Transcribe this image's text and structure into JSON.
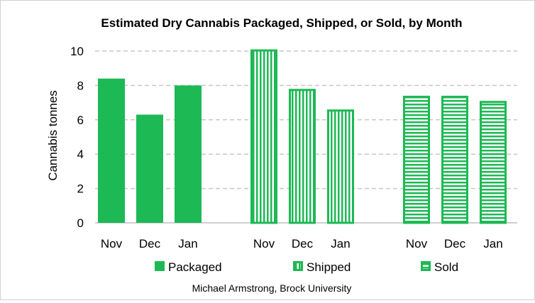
{
  "chart_data": {
    "type": "bar",
    "title": "Estimated Dry Cannabis Packaged, Shipped, or Sold, by Month",
    "ylabel": "Cannabis tonnes",
    "xlabel": "",
    "ylim": [
      0,
      10
    ],
    "yticks": [
      "0",
      "2",
      "4",
      "6",
      "8",
      "10"
    ],
    "grid": true,
    "legend_position": "bottom",
    "categories": [
      "Nov",
      "Dec",
      "Jan"
    ],
    "series": [
      {
        "name": "Packaged",
        "values": [
          8.4,
          6.3,
          8.0
        ],
        "pattern": "solid"
      },
      {
        "name": "Shipped",
        "values": [
          10.1,
          7.8,
          6.6
        ],
        "pattern": "vertical-stripes"
      },
      {
        "name": "Sold",
        "values": [
          7.4,
          7.4,
          7.1
        ],
        "pattern": "horizontal-stripes"
      }
    ],
    "color": "#1db954",
    "credit": "Michael Armstrong, Brock University"
  }
}
